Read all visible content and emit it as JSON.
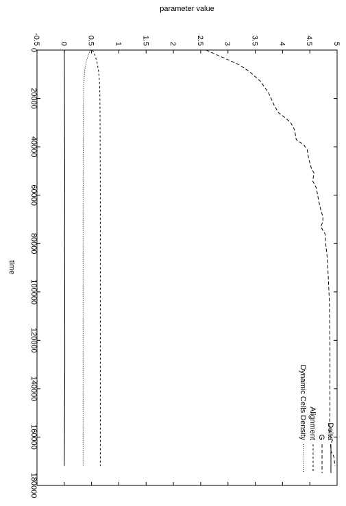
{
  "chart_data": {
    "type": "line",
    "orientation": "rotated-90-clockwise",
    "xlabel": "time",
    "ylabel": "parameter value",
    "xlim": [
      0,
      180000
    ],
    "ylim": [
      -0.5,
      5
    ],
    "x_ticks": [
      "0",
      "20000",
      "40000",
      "60000",
      "80000",
      "100000",
      "120000",
      "140000",
      "160000",
      "180000"
    ],
    "y_ticks": [
      "-0.5",
      "0",
      "0.5",
      "1",
      "1.5",
      "2",
      "2.5",
      "3",
      "3.5",
      "4",
      "4.5",
      "5"
    ],
    "grid": false,
    "legend_position": "bottom-right",
    "series": [
      {
        "name": "Delta",
        "style": "solid",
        "points": [
          [
            0,
            0
          ],
          [
            5000,
            0.002
          ],
          [
            20000,
            0.004
          ],
          [
            50000,
            0.008
          ],
          [
            80000,
            0.006
          ],
          [
            100000,
            0.008
          ],
          [
            130000,
            0.01
          ],
          [
            160000,
            0.004
          ],
          [
            172000,
            0
          ]
        ]
      },
      {
        "name": "G",
        "style": "long-dash",
        "points": [
          [
            0,
            2.6
          ],
          [
            2000,
            2.8
          ],
          [
            4000,
            3.0
          ],
          [
            6000,
            3.2
          ],
          [
            9000,
            3.4
          ],
          [
            13000,
            3.6
          ],
          [
            18000,
            3.75
          ],
          [
            23000,
            3.85
          ],
          [
            26000,
            3.93
          ],
          [
            28000,
            4.05
          ],
          [
            30000,
            4.15
          ],
          [
            33000,
            4.22
          ],
          [
            37000,
            4.25
          ],
          [
            39000,
            4.38
          ],
          [
            41000,
            4.45
          ],
          [
            45000,
            4.48
          ],
          [
            49000,
            4.53
          ],
          [
            51000,
            4.58
          ],
          [
            54000,
            4.55
          ],
          [
            57000,
            4.62
          ],
          [
            62000,
            4.66
          ],
          [
            66000,
            4.7
          ],
          [
            69000,
            4.74
          ],
          [
            71000,
            4.74
          ],
          [
            73000,
            4.7
          ],
          [
            76000,
            4.78
          ],
          [
            80000,
            4.79
          ],
          [
            86000,
            4.82
          ],
          [
            95000,
            4.84
          ],
          [
            105000,
            4.86
          ],
          [
            120000,
            4.87
          ],
          [
            135000,
            4.87
          ],
          [
            150000,
            4.87
          ],
          [
            159000,
            4.86
          ],
          [
            161000,
            4.92
          ],
          [
            163000,
            4.88
          ],
          [
            166000,
            4.89
          ],
          [
            168000,
            4.94
          ],
          [
            170000,
            4.95
          ],
          [
            172000,
            4.96
          ]
        ]
      },
      {
        "name": "Alignment",
        "style": "short-dash",
        "points": [
          [
            0,
            0.52
          ],
          [
            2000,
            0.56
          ],
          [
            5000,
            0.6
          ],
          [
            9000,
            0.63
          ],
          [
            15000,
            0.65
          ],
          [
            25000,
            0.655
          ],
          [
            60000,
            0.66
          ],
          [
            120000,
            0.66
          ],
          [
            172000,
            0.66
          ]
        ]
      },
      {
        "name": "Dynamic Cells Density",
        "style": "dotted",
        "points": [
          [
            0,
            0.48
          ],
          [
            2000,
            0.44
          ],
          [
            5000,
            0.4
          ],
          [
            9000,
            0.37
          ],
          [
            15000,
            0.355
          ],
          [
            25000,
            0.35
          ],
          [
            60000,
            0.345
          ],
          [
            120000,
            0.345
          ],
          [
            172000,
            0.345
          ]
        ]
      }
    ]
  }
}
